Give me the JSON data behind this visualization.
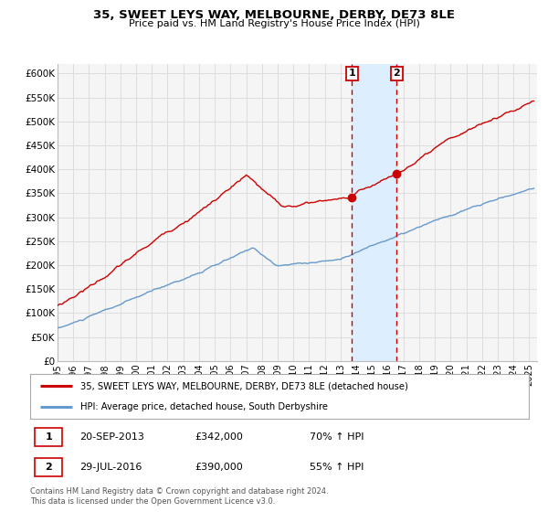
{
  "title": "35, SWEET LEYS WAY, MELBOURNE, DERBY, DE73 8LE",
  "subtitle": "Price paid vs. HM Land Registry's House Price Index (HPI)",
  "xlim": [
    1995.0,
    2025.5
  ],
  "ylim": [
    0,
    620000
  ],
  "yticks": [
    0,
    50000,
    100000,
    150000,
    200000,
    250000,
    300000,
    350000,
    400000,
    450000,
    500000,
    550000,
    600000
  ],
  "ytick_labels": [
    "£0",
    "£50K",
    "£100K",
    "£150K",
    "£200K",
    "£250K",
    "£300K",
    "£350K",
    "£400K",
    "£450K",
    "£500K",
    "£550K",
    "£600K"
  ],
  "xticks": [
    1995,
    1996,
    1997,
    1998,
    1999,
    2000,
    2001,
    2002,
    2003,
    2004,
    2005,
    2006,
    2007,
    2008,
    2009,
    2010,
    2011,
    2012,
    2013,
    2014,
    2015,
    2016,
    2017,
    2018,
    2019,
    2020,
    2021,
    2022,
    2023,
    2024,
    2025
  ],
  "sale1_date": 2013.72,
  "sale1_price": 342000,
  "sale1_label": "1",
  "sale2_date": 2016.58,
  "sale2_price": 390000,
  "sale2_label": "2",
  "shade_start": 2013.72,
  "shade_end": 2016.58,
  "line1_color": "#cc0000",
  "line2_color": "#6699cc",
  "shade_color": "#ddeeff",
  "grid_color": "#dddddd",
  "bg_color": "#f5f5f5",
  "legend1_text": "35, SWEET LEYS WAY, MELBOURNE, DERBY, DE73 8LE (detached house)",
  "legend2_text": "HPI: Average price, detached house, South Derbyshire",
  "note1_label": "1",
  "note1_date": "20-SEP-2013",
  "note1_price": "£342,000",
  "note1_hpi": "70% ↑ HPI",
  "note2_label": "2",
  "note2_date": "29-JUL-2016",
  "note2_price": "£390,000",
  "note2_hpi": "55% ↑ HPI",
  "footer": "Contains HM Land Registry data © Crown copyright and database right 2024.\nThis data is licensed under the Open Government Licence v3.0."
}
